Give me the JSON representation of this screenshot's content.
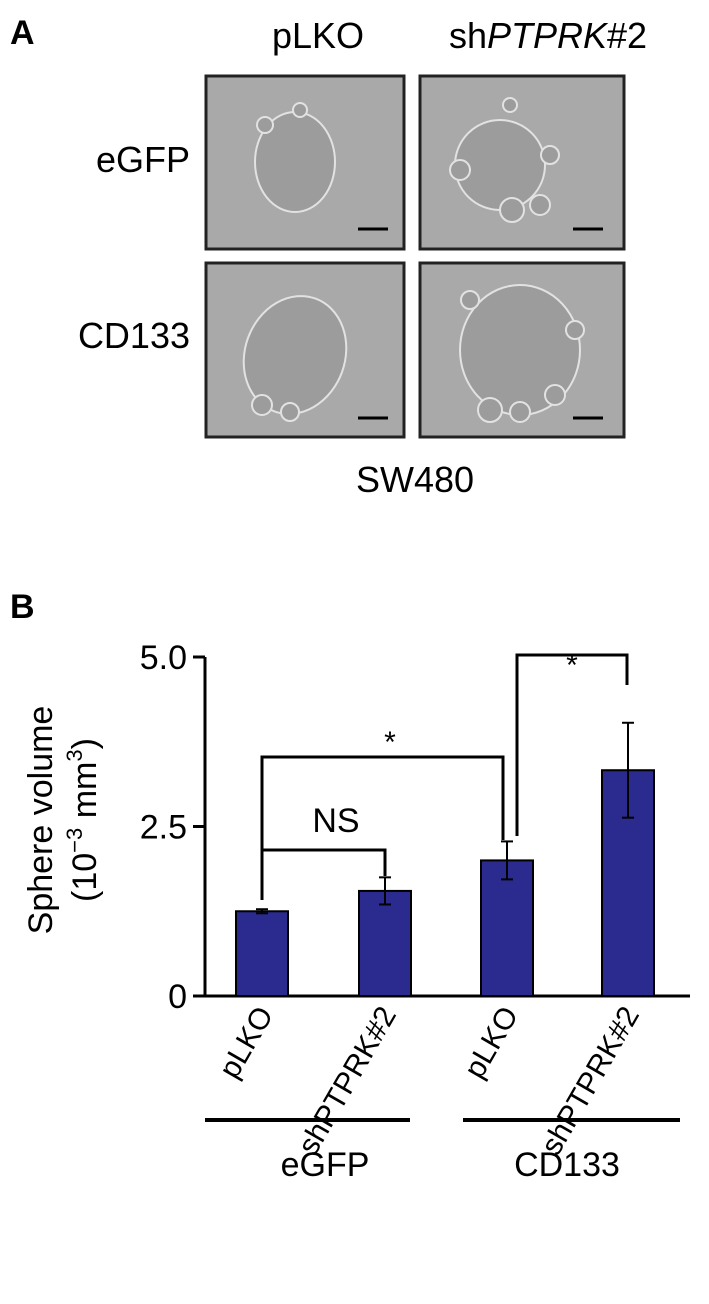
{
  "panel_a": {
    "label": "A",
    "columns": [
      "pLKO",
      [
        "sh",
        "PTPRK",
        "#2"
      ]
    ],
    "rows": [
      "eGFP",
      "CD133"
    ],
    "cell_line": "SW480"
  },
  "chart_data": {
    "type": "bar",
    "label": "B",
    "ylabel": {
      "line1": "Sphere volume",
      "line2": [
        "(10",
        "−3",
        " mm",
        "3",
        ")"
      ]
    },
    "categories": [
      "pLKO",
      "shPTPRK#2",
      "pLKO",
      "shPTPRK#2"
    ],
    "groups": [
      "eGFP",
      "CD133"
    ],
    "values": [
      1.25,
      1.55,
      2.0,
      3.33
    ],
    "errors": [
      0.03,
      0.2,
      0.28,
      0.7
    ],
    "color": "#2b2a8e",
    "ylim": [
      0,
      5
    ],
    "yticks": [
      0,
      2.5,
      {
        "value": 5,
        "label": "5.0"
      }
    ],
    "annotations": [
      "NS",
      "*",
      "*"
    ]
  }
}
